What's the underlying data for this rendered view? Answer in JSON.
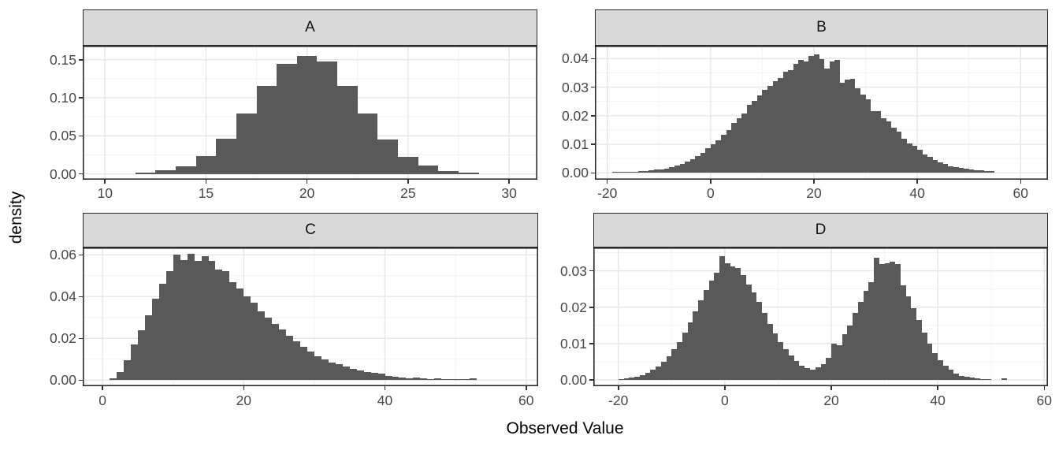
{
  "figure": {
    "x_axis_title": "Observed Value",
    "y_axis_title": "density",
    "colors": {
      "bar_fill": "#595959",
      "strip_background": "#D9D9D9",
      "strip_border": "#2B2B2B",
      "panel_border": "#2B2B2B",
      "grid_major": "#E6E6E6",
      "grid_minor": "#F2F2F2",
      "tick_mark": "#333333",
      "tick_label": "#474747",
      "axis_title": "#000000",
      "background": "#FFFFFF"
    }
  },
  "chart_data": [
    {
      "type": "bar",
      "subtype": "histogram",
      "facet": "A",
      "xlabel": "Observed Value",
      "ylabel": "density",
      "bin_start": 11.5,
      "binwidth": 1,
      "densities": [
        0.002,
        0.0045,
        0.01,
        0.023,
        0.046,
        0.079,
        0.116,
        0.145,
        0.155,
        0.148,
        0.116,
        0.079,
        0.045,
        0.022,
        0.011,
        0.004,
        0.0015
      ],
      "xlim": [
        8.9,
        31.4
      ],
      "ylim": [
        -0.0076,
        0.1684
      ],
      "x_ticks": {
        "values": [
          10,
          15,
          20,
          25,
          30
        ],
        "labels": [
          "10",
          "15",
          "20",
          "25",
          "30"
        ]
      },
      "y_ticks": {
        "values": [
          0,
          0.05,
          0.1,
          0.15
        ],
        "labels": [
          "0.00",
          "0.05",
          "0.10",
          "0.15"
        ]
      },
      "x_minor": [
        12.5,
        17.5,
        22.5,
        27.5
      ],
      "y_minor": [
        0.025,
        0.075,
        0.125
      ],
      "grid": true
    },
    {
      "type": "bar",
      "subtype": "histogram",
      "facet": "B",
      "xlabel": "Observed Value",
      "ylabel": "density",
      "bin_start": -19,
      "binwidth": 1,
      "densities": [
        0.0003,
        0.0001,
        0.0002,
        0.0003,
        0.0004,
        0.0005,
        0.0007,
        0.0009,
        0.0011,
        0.0013,
        0.0016,
        0.0021,
        0.0026,
        0.0032,
        0.004,
        0.0049,
        0.0059,
        0.0071,
        0.0085,
        0.01,
        0.0113,
        0.0133,
        0.0151,
        0.0174,
        0.0191,
        0.0207,
        0.0239,
        0.0251,
        0.027,
        0.0291,
        0.0305,
        0.0322,
        0.0331,
        0.0354,
        0.0359,
        0.0382,
        0.0396,
        0.0389,
        0.041,
        0.0415,
        0.0399,
        0.0365,
        0.039,
        0.0396,
        0.0315,
        0.0325,
        0.033,
        0.0295,
        0.0273,
        0.0258,
        0.0215,
        0.0216,
        0.019,
        0.0181,
        0.0159,
        0.0145,
        0.012,
        0.0104,
        0.0094,
        0.008,
        0.0064,
        0.0055,
        0.0044,
        0.0036,
        0.003,
        0.0024,
        0.002,
        0.0017,
        0.0014,
        0.0012,
        0.001,
        0.0008,
        0.0006,
        0.0005
      ],
      "xlim": [
        -22.4,
        65.3
      ],
      "ylim": [
        -0.0024,
        0.0445
      ],
      "x_ticks": {
        "values": [
          -20,
          0,
          20,
          40,
          60
        ],
        "labels": [
          "-20",
          "0",
          "20",
          "40",
          "60"
        ]
      },
      "y_ticks": {
        "values": [
          0,
          0.01,
          0.02,
          0.03,
          0.04
        ],
        "labels": [
          "0.00",
          "0.01",
          "0.02",
          "0.03",
          "0.04"
        ]
      },
      "x_minor": [
        -10,
        10,
        30,
        50
      ],
      "y_minor": [
        0.005,
        0.015,
        0.025,
        0.035
      ],
      "grid": true
    },
    {
      "type": "bar",
      "subtype": "histogram",
      "facet": "C",
      "xlabel": "Observed Value",
      "ylabel": "density",
      "bin_start": 1,
      "binwidth": 1,
      "densities": [
        0.001,
        0.004,
        0.0095,
        0.017,
        0.024,
        0.031,
        0.039,
        0.046,
        0.052,
        0.06,
        0.0575,
        0.0605,
        0.057,
        0.0595,
        0.057,
        0.053,
        0.052,
        0.047,
        0.044,
        0.04,
        0.037,
        0.033,
        0.03,
        0.027,
        0.0242,
        0.0212,
        0.0185,
        0.016,
        0.0136,
        0.0116,
        0.01,
        0.0086,
        0.0075,
        0.0064,
        0.0055,
        0.0046,
        0.004,
        0.0034,
        0.003,
        0.002,
        0.0015,
        0.0012,
        0.001,
        0.0012,
        0.0008,
        0.0006,
        0.0008,
        0.0004,
        0.0003,
        0.0006,
        0.0003,
        0.0008
      ],
      "xlim": [
        -2.8,
        61.7
      ],
      "ylim": [
        -0.0029,
        0.0635
      ],
      "x_ticks": {
        "values": [
          0,
          20,
          40,
          60
        ],
        "labels": [
          "0",
          "20",
          "40",
          "60"
        ]
      },
      "y_ticks": {
        "values": [
          0,
          0.02,
          0.04,
          0.06
        ],
        "labels": [
          "0.00",
          "0.02",
          "0.04",
          "0.06"
        ]
      },
      "x_minor": [
        10,
        30,
        50
      ],
      "y_minor": [
        0.01,
        0.03,
        0.05
      ],
      "grid": true
    },
    {
      "type": "bar",
      "subtype": "histogram",
      "facet": "D",
      "xlabel": "Observed Value",
      "ylabel": "density",
      "bin_start": -20,
      "binwidth": 1,
      "densities": [
        0.0003,
        0.0005,
        0.0007,
        0.001,
        0.0014,
        0.002,
        0.0028,
        0.0038,
        0.005,
        0.0065,
        0.0085,
        0.0105,
        0.013,
        0.0158,
        0.0188,
        0.0218,
        0.0248,
        0.0272,
        0.0295,
        0.034,
        0.032,
        0.0312,
        0.0308,
        0.0288,
        0.0262,
        0.024,
        0.0215,
        0.0185,
        0.0155,
        0.0128,
        0.0105,
        0.0085,
        0.0068,
        0.0053,
        0.004,
        0.0032,
        0.0028,
        0.0035,
        0.0044,
        0.006,
        0.01,
        0.0095,
        0.0125,
        0.015,
        0.0185,
        0.0215,
        0.0245,
        0.0268,
        0.0335,
        0.0318,
        0.032,
        0.0325,
        0.0318,
        0.026,
        0.023,
        0.0198,
        0.0165,
        0.013,
        0.01,
        0.0075,
        0.0055,
        0.004,
        0.0028,
        0.0018,
        0.0012,
        0.0008,
        0.0006,
        0.0004,
        0.0003,
        0.0002,
        0.0,
        0.0,
        0.0005
      ],
      "xlim": [
        -24.7,
        60.7
      ],
      "ylim": [
        -0.0017,
        0.0364
      ],
      "x_ticks": {
        "values": [
          -20,
          0,
          20,
          40,
          60
        ],
        "labels": [
          "-20",
          "0",
          "20",
          "40",
          "60"
        ]
      },
      "y_ticks": {
        "values": [
          0,
          0.01,
          0.02,
          0.03
        ],
        "labels": [
          "0.00",
          "0.01",
          "0.02",
          "0.03"
        ]
      },
      "x_minor": [
        -10,
        10,
        30,
        50
      ],
      "y_minor": [
        0.005,
        0.015,
        0.025,
        0.035
      ],
      "grid": true
    }
  ]
}
